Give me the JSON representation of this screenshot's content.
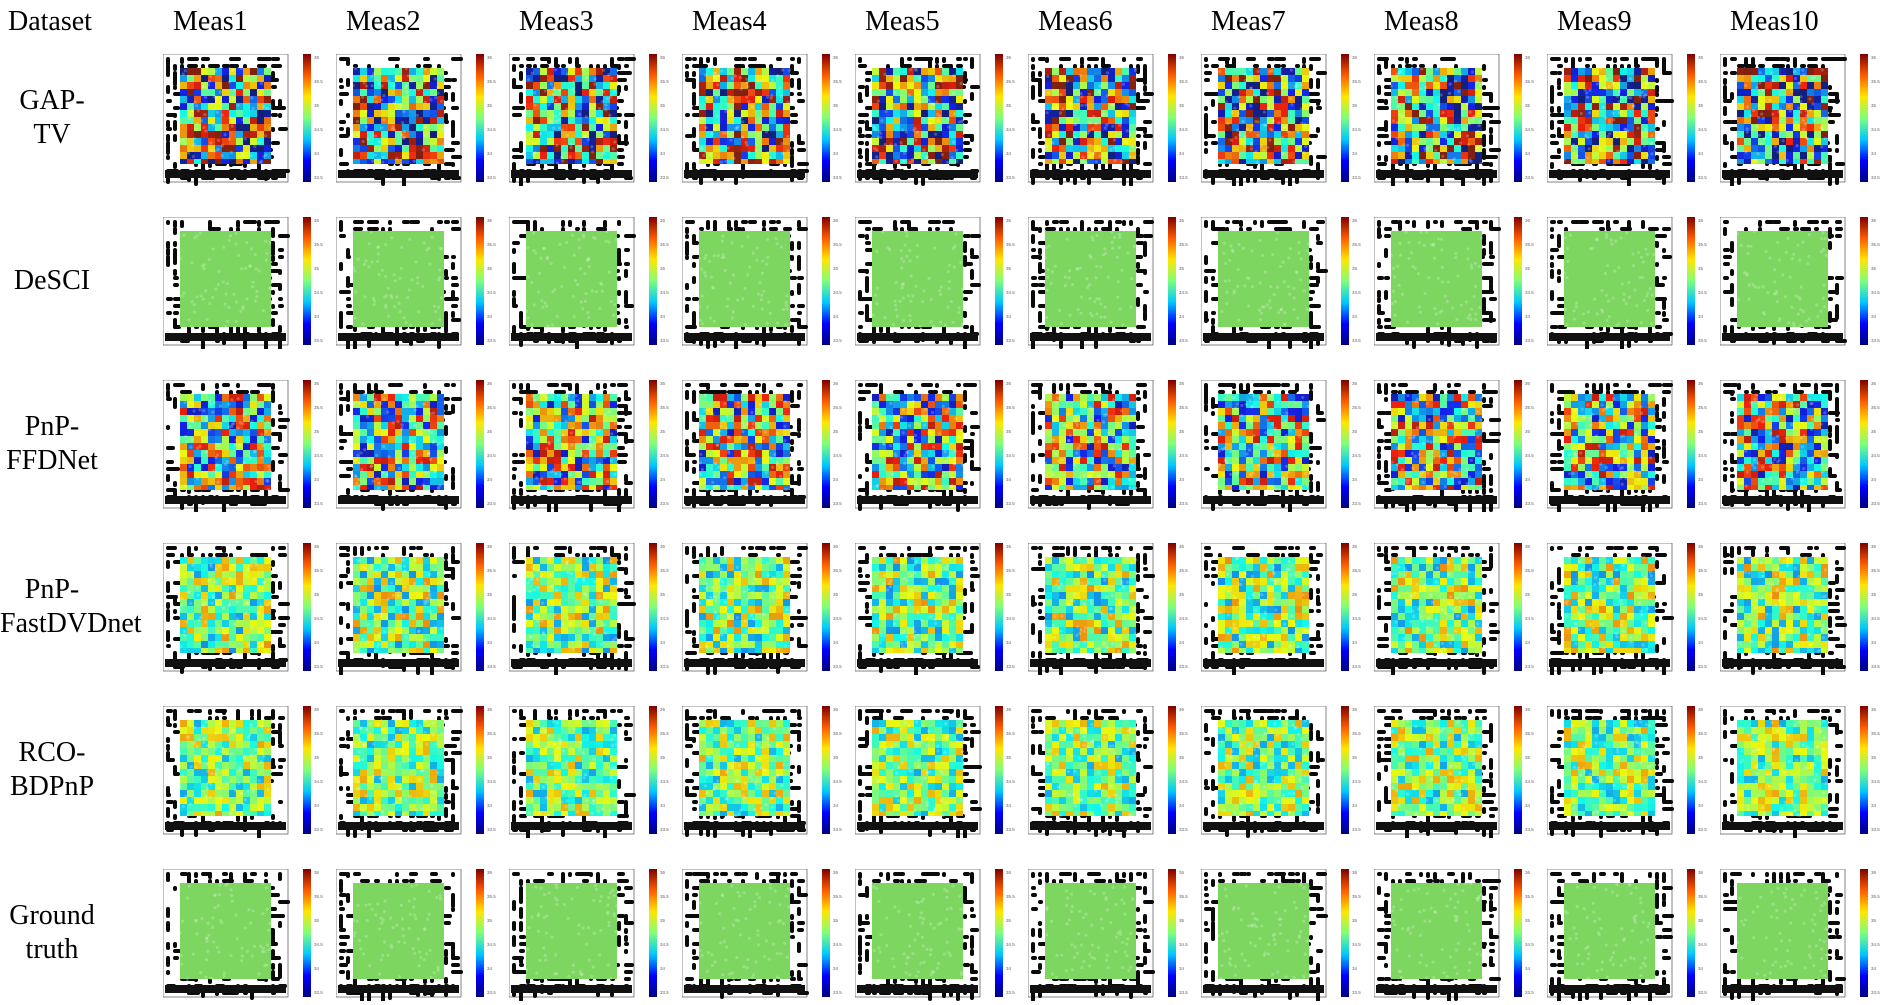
{
  "header": {
    "dataset_label": "Dataset",
    "columns": [
      "Meas1",
      "Meas2",
      "Meas3",
      "Meas4",
      "Meas5",
      "Meas6",
      "Meas7",
      "Meas8",
      "Meas9",
      "Meas10"
    ]
  },
  "rows": [
    {
      "label_lines": [
        "GAP-",
        "TV"
      ],
      "variation": 1.0
    },
    {
      "label_lines": [
        "DeSCI"
      ],
      "variation": 0.0
    },
    {
      "label_lines": [
        "PnP-",
        "FFDNet"
      ],
      "variation": 0.8
    },
    {
      "label_lines": [
        "PnP-",
        "FastDVDnet"
      ],
      "variation": 0.45
    },
    {
      "label_lines": [
        "RCO-",
        "BDPnP"
      ],
      "variation": 0.4
    },
    {
      "label_lines": [
        "Ground",
        "truth"
      ],
      "variation": 0.0
    }
  ],
  "colors": {
    "uniform_green": "#7dd660",
    "maze_black": "#0a0a0a",
    "colorbar_stops": [
      "#00007f",
      "#0000ff",
      "#00c8ff",
      "#7dff7a",
      "#ffe600",
      "#ff5a00",
      "#7f0000"
    ]
  },
  "colorbar_ticks": [
    "36",
    "35.5",
    "35",
    "34.5",
    "34",
    "33.5"
  ]
}
